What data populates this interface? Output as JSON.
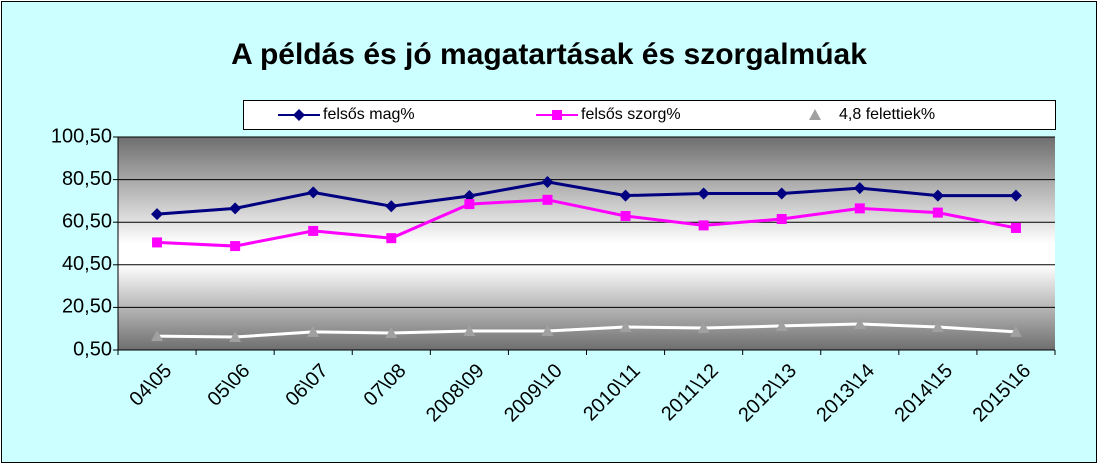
{
  "chart_data": {
    "type": "line",
    "title": "A példás és jó magatartásak és szorgalmúak",
    "categories": [
      "04\\05",
      "05\\06",
      "06\\07",
      "07\\08",
      "2008\\09",
      "2009\\10",
      "2010\\11",
      "2011\\12",
      "2012\\13",
      "2013\\14",
      "2014\\15",
      "2015\\16"
    ],
    "series": [
      {
        "name": "felsős mag%",
        "color": "#000080",
        "marker": "diamond",
        "marker_color": "#000080",
        "values": [
          64.3,
          67,
          74.5,
          68,
          72.8,
          79.4,
          73,
          74,
          74,
          76.5,
          73,
          73
        ]
      },
      {
        "name": "felsős szorg%",
        "color": "#ff00ff",
        "marker": "square",
        "marker_color": "#ff00ff",
        "values": [
          51,
          49.3,
          56.4,
          53,
          69,
          71,
          63.4,
          59,
          62,
          67,
          65,
          57.8
        ]
      },
      {
        "name": "4,8 felettiek%",
        "color": "#ffffff",
        "marker": "triangle",
        "marker_color": "#a0a0a0",
        "values": [
          7,
          6.6,
          9,
          8.5,
          9.4,
          9.4,
          11.3,
          10.8,
          11.8,
          12.7,
          11.3,
          9
        ]
      }
    ],
    "ylim": [
      0.5,
      100.5
    ],
    "yticks": [
      {
        "value": 0.5,
        "label": "0,50"
      },
      {
        "value": 20.5,
        "label": "20,50"
      },
      {
        "value": 40.5,
        "label": "40,50"
      },
      {
        "value": 60.5,
        "label": "60,50"
      },
      {
        "value": 80.5,
        "label": "80,50"
      },
      {
        "value": 100.5,
        "label": "100,50"
      }
    ],
    "grid": true
  }
}
